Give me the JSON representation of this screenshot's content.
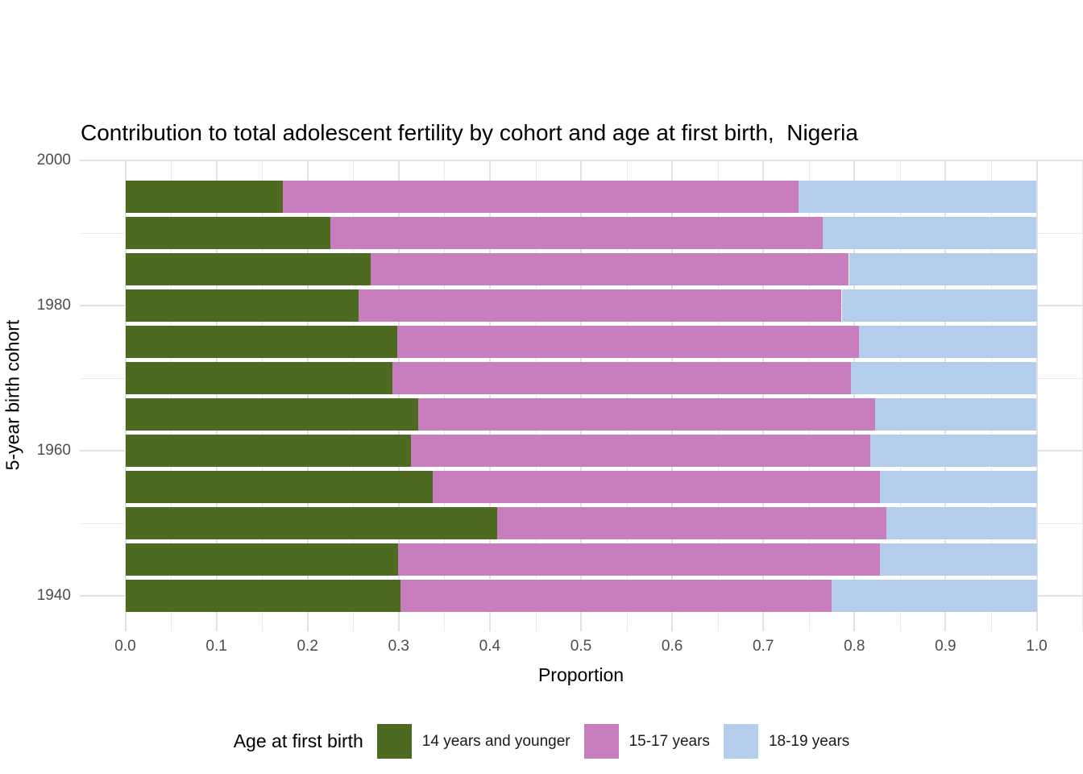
{
  "figure": {
    "title": "Contribution to total adolescent fertility by cohort and age at first birth,  Nigeria"
  },
  "chart_data": {
    "type": "bar",
    "variant": "horizontal_stacked",
    "title": "Contribution to total adolescent fertility by cohort and age at first birth,  Nigeria",
    "xlabel": "Proportion",
    "ylabel": "5-year birth cohort",
    "xlim": [
      0.0,
      1.0
    ],
    "ylim": [
      1935,
      2000
    ],
    "grid": true,
    "minor_grid_step_x": 0.05,
    "x_ticks": [
      "0.0",
      "0.1",
      "0.2",
      "0.3",
      "0.4",
      "0.5",
      "0.6",
      "0.7",
      "0.8",
      "0.9",
      "1.0"
    ],
    "y_ticks": [
      "2000",
      "1980",
      "1960",
      "1940"
    ],
    "legend_title": "Age at first birth",
    "legend_position": "bottom",
    "categories": [
      1995,
      1990,
      1985,
      1980,
      1975,
      1970,
      1965,
      1960,
      1955,
      1950,
      1945,
      1940
    ],
    "series": [
      {
        "name": "14 years and younger",
        "color": "#4c6b20",
        "values": [
          0.173,
          0.225,
          0.269,
          0.256,
          0.298,
          0.293,
          0.321,
          0.313,
          0.337,
          0.408,
          0.299,
          0.302
        ]
      },
      {
        "name": "15-17 years",
        "color": "#c87dbf",
        "values": [
          0.566,
          0.54,
          0.525,
          0.53,
          0.507,
          0.503,
          0.502,
          0.504,
          0.491,
          0.427,
          0.529,
          0.473
        ]
      },
      {
        "name": "18-19 years",
        "color": "#b4cdec",
        "values": [
          0.261,
          0.235,
          0.206,
          0.214,
          0.195,
          0.204,
          0.177,
          0.183,
          0.172,
          0.165,
          0.172,
          0.225
        ]
      }
    ]
  }
}
